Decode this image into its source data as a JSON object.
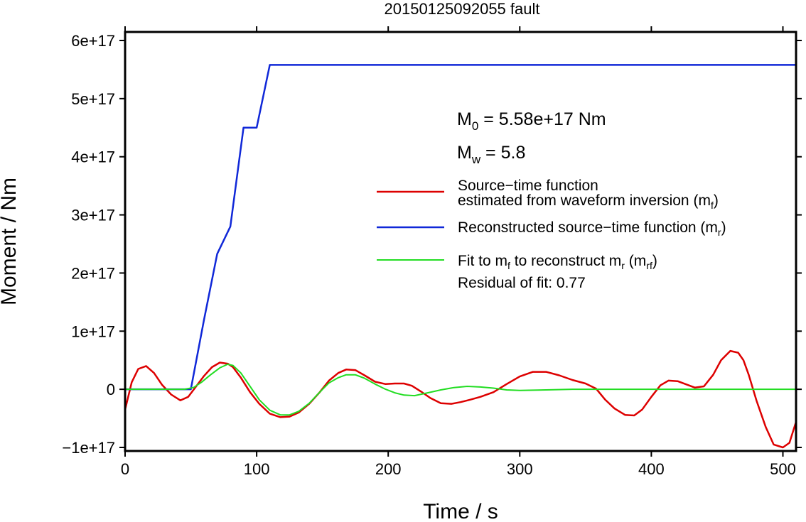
{
  "chart_data": {
    "type": "line",
    "title": "20150125092055 fault",
    "xlabel": "Time / s",
    "ylabel": "Moment / Nm",
    "xlim": [
      0,
      510
    ],
    "ylim": [
      -100000000000000000,
      600000000000000000
    ],
    "x_ticks": [
      0,
      100,
      200,
      300,
      400,
      500
    ],
    "x_tick_labels": [
      "0",
      "100",
      "200",
      "300",
      "400",
      "500"
    ],
    "y_ticks": [
      -100000000000000000,
      0,
      100000000000000000,
      200000000000000000,
      300000000000000000,
      400000000000000000,
      500000000000000000,
      600000000000000000
    ],
    "y_tick_labels": [
      "−1e+17",
      "0",
      "1e+17",
      "2e+17",
      "3e+17",
      "4e+17",
      "5e+17",
      "6e+17"
    ],
    "grid": false,
    "legend_position": "right",
    "annotations": {
      "m0": {
        "symbol": "M",
        "sub": "0",
        "text": " = 5.58e+17 Nm"
      },
      "mw": {
        "symbol": "M",
        "sub": "w",
        "text": " = 5.8"
      },
      "residual": "Residual of fit: 0.77"
    },
    "series": [
      {
        "name": "Source−time function estimated from waveform inversion (m_f)",
        "legend": {
          "line1": "Source−time function",
          "line2": "estimated from waveform inversion (m",
          "sub": "f",
          "close": ")"
        },
        "color": "#dd0000",
        "x": [
          0,
          5,
          10,
          16,
          22,
          28,
          35,
          42,
          48,
          53,
          60,
          66,
          72,
          78,
          82,
          88,
          95,
          102,
          110,
          118,
          125,
          132,
          140,
          148,
          155,
          162,
          168,
          175,
          182,
          190,
          198,
          205,
          212,
          218,
          225,
          232,
          240,
          248,
          255,
          262,
          270,
          280,
          290,
          300,
          310,
          320,
          330,
          340,
          350,
          358,
          365,
          372,
          380,
          387,
          393,
          400,
          407,
          413,
          420,
          427,
          433,
          440,
          447,
          453,
          460,
          466,
          470,
          474,
          480,
          487,
          493,
          500,
          505,
          510
        ],
        "y": [
          -3.5e+16,
          1.2e+16,
          3.5e+16,
          4e+16,
          2.8e+16,
          8000000000000000.0,
          -9000000000000000.0,
          -1.9e+16,
          -1.3e+16,
          2000000000000000.0,
          2.3e+16,
          3.8e+16,
          4.6e+16,
          4.4e+16,
          3.8e+16,
          2e+16,
          -5000000000000000.0,
          -2.5e+16,
          -4.2e+16,
          -4.8e+16,
          -4.7e+16,
          -4e+16,
          -2.5e+16,
          -5000000000000000.0,
          1.5e+16,
          2.8e+16,
          3.4e+16,
          3.3e+16,
          2.4e+16,
          1.3e+16,
          9000000000000000.0,
          1e+16,
          1e+16,
          6000000000000000.0,
          -4000000000000000.0,
          -1.5e+16,
          -2.4e+16,
          -2.5e+16,
          -2.2e+16,
          -1.8e+16,
          -1.3e+16,
          -5000000000000000.0,
          9000000000000000.0,
          2.2e+16,
          3e+16,
          3e+16,
          2.4e+16,
          1.6e+16,
          1e+16,
          1000000000000000.0,
          -1.8e+16,
          -3.3e+16,
          -4.4e+16,
          -4.5e+16,
          -3.5e+16,
          -1.3e+16,
          7000000000000000.0,
          1.5e+16,
          1.4e+16,
          8000000000000000.0,
          3000000000000000.0,
          5000000000000000.0,
          2.5e+16,
          5e+16,
          6.6e+16,
          6.3e+16,
          5e+16,
          2.5e+16,
          -2e+16,
          -6.5e+16,
          -9.5e+16,
          -1e+17,
          -9.2e+16,
          -5.6e+16
        ]
      },
      {
        "name": "Reconstructed source−time function (m_r)",
        "legend": {
          "line1": "Reconstructed source−time function (m",
          "sub": "r",
          "close": ")"
        },
        "color": "#1028d8",
        "x": [
          0,
          50,
          60,
          70,
          80,
          90,
          100,
          110,
          510
        ],
        "y": [
          0,
          0,
          1.2e+17,
          2.33e+17,
          2.8e+17,
          4.5e+17,
          4.5e+17,
          5.58e+17,
          5.58e+17
        ]
      },
      {
        "name": "Fit to m_f to reconstruct m_r (m_rf)",
        "legend": {
          "line1a": "Fit to m",
          "sub1": "f",
          "line1b": " to reconstruct m",
          "sub2": "r",
          "line1c": " (m",
          "sub3": "rf",
          "close": ")"
        },
        "color": "#22dd22",
        "x": [
          0,
          45,
          52,
          58,
          65,
          72,
          78,
          82,
          88,
          95,
          102,
          110,
          118,
          125,
          132,
          140,
          148,
          155,
          162,
          168,
          175,
          182,
          190,
          198,
          205,
          212,
          220,
          230,
          240,
          250,
          260,
          270,
          280,
          290,
          300,
          320,
          340,
          360,
          400,
          450,
          510
        ],
        "y": [
          0,
          0,
          3000000000000000.0,
          1.2e+16,
          2.5e+16,
          3.7e+16,
          4.3e+16,
          4.1e+16,
          2.8e+16,
          5000000000000000.0,
          -1.8e+16,
          -3.6e+16,
          -4.4e+16,
          -4.4e+16,
          -3.8e+16,
          -2.4e+16,
          -5000000000000000.0,
          1.1e+16,
          2e+16,
          2.5e+16,
          2.5e+16,
          1.9e+16,
          9000000000000000.0,
          0,
          -6000000000000000.0,
          -1e+16,
          -1.1e+16,
          -6000000000000000.0,
          -1000000000000000.0,
          3000000000000000.0,
          5000000000000000.0,
          4000000000000000.0,
          2000000000000000.0,
          -1000000000000000.0,
          -2000000000000000.0,
          -1000000000000000.0,
          0,
          0,
          0,
          0,
          0
        ]
      }
    ]
  }
}
